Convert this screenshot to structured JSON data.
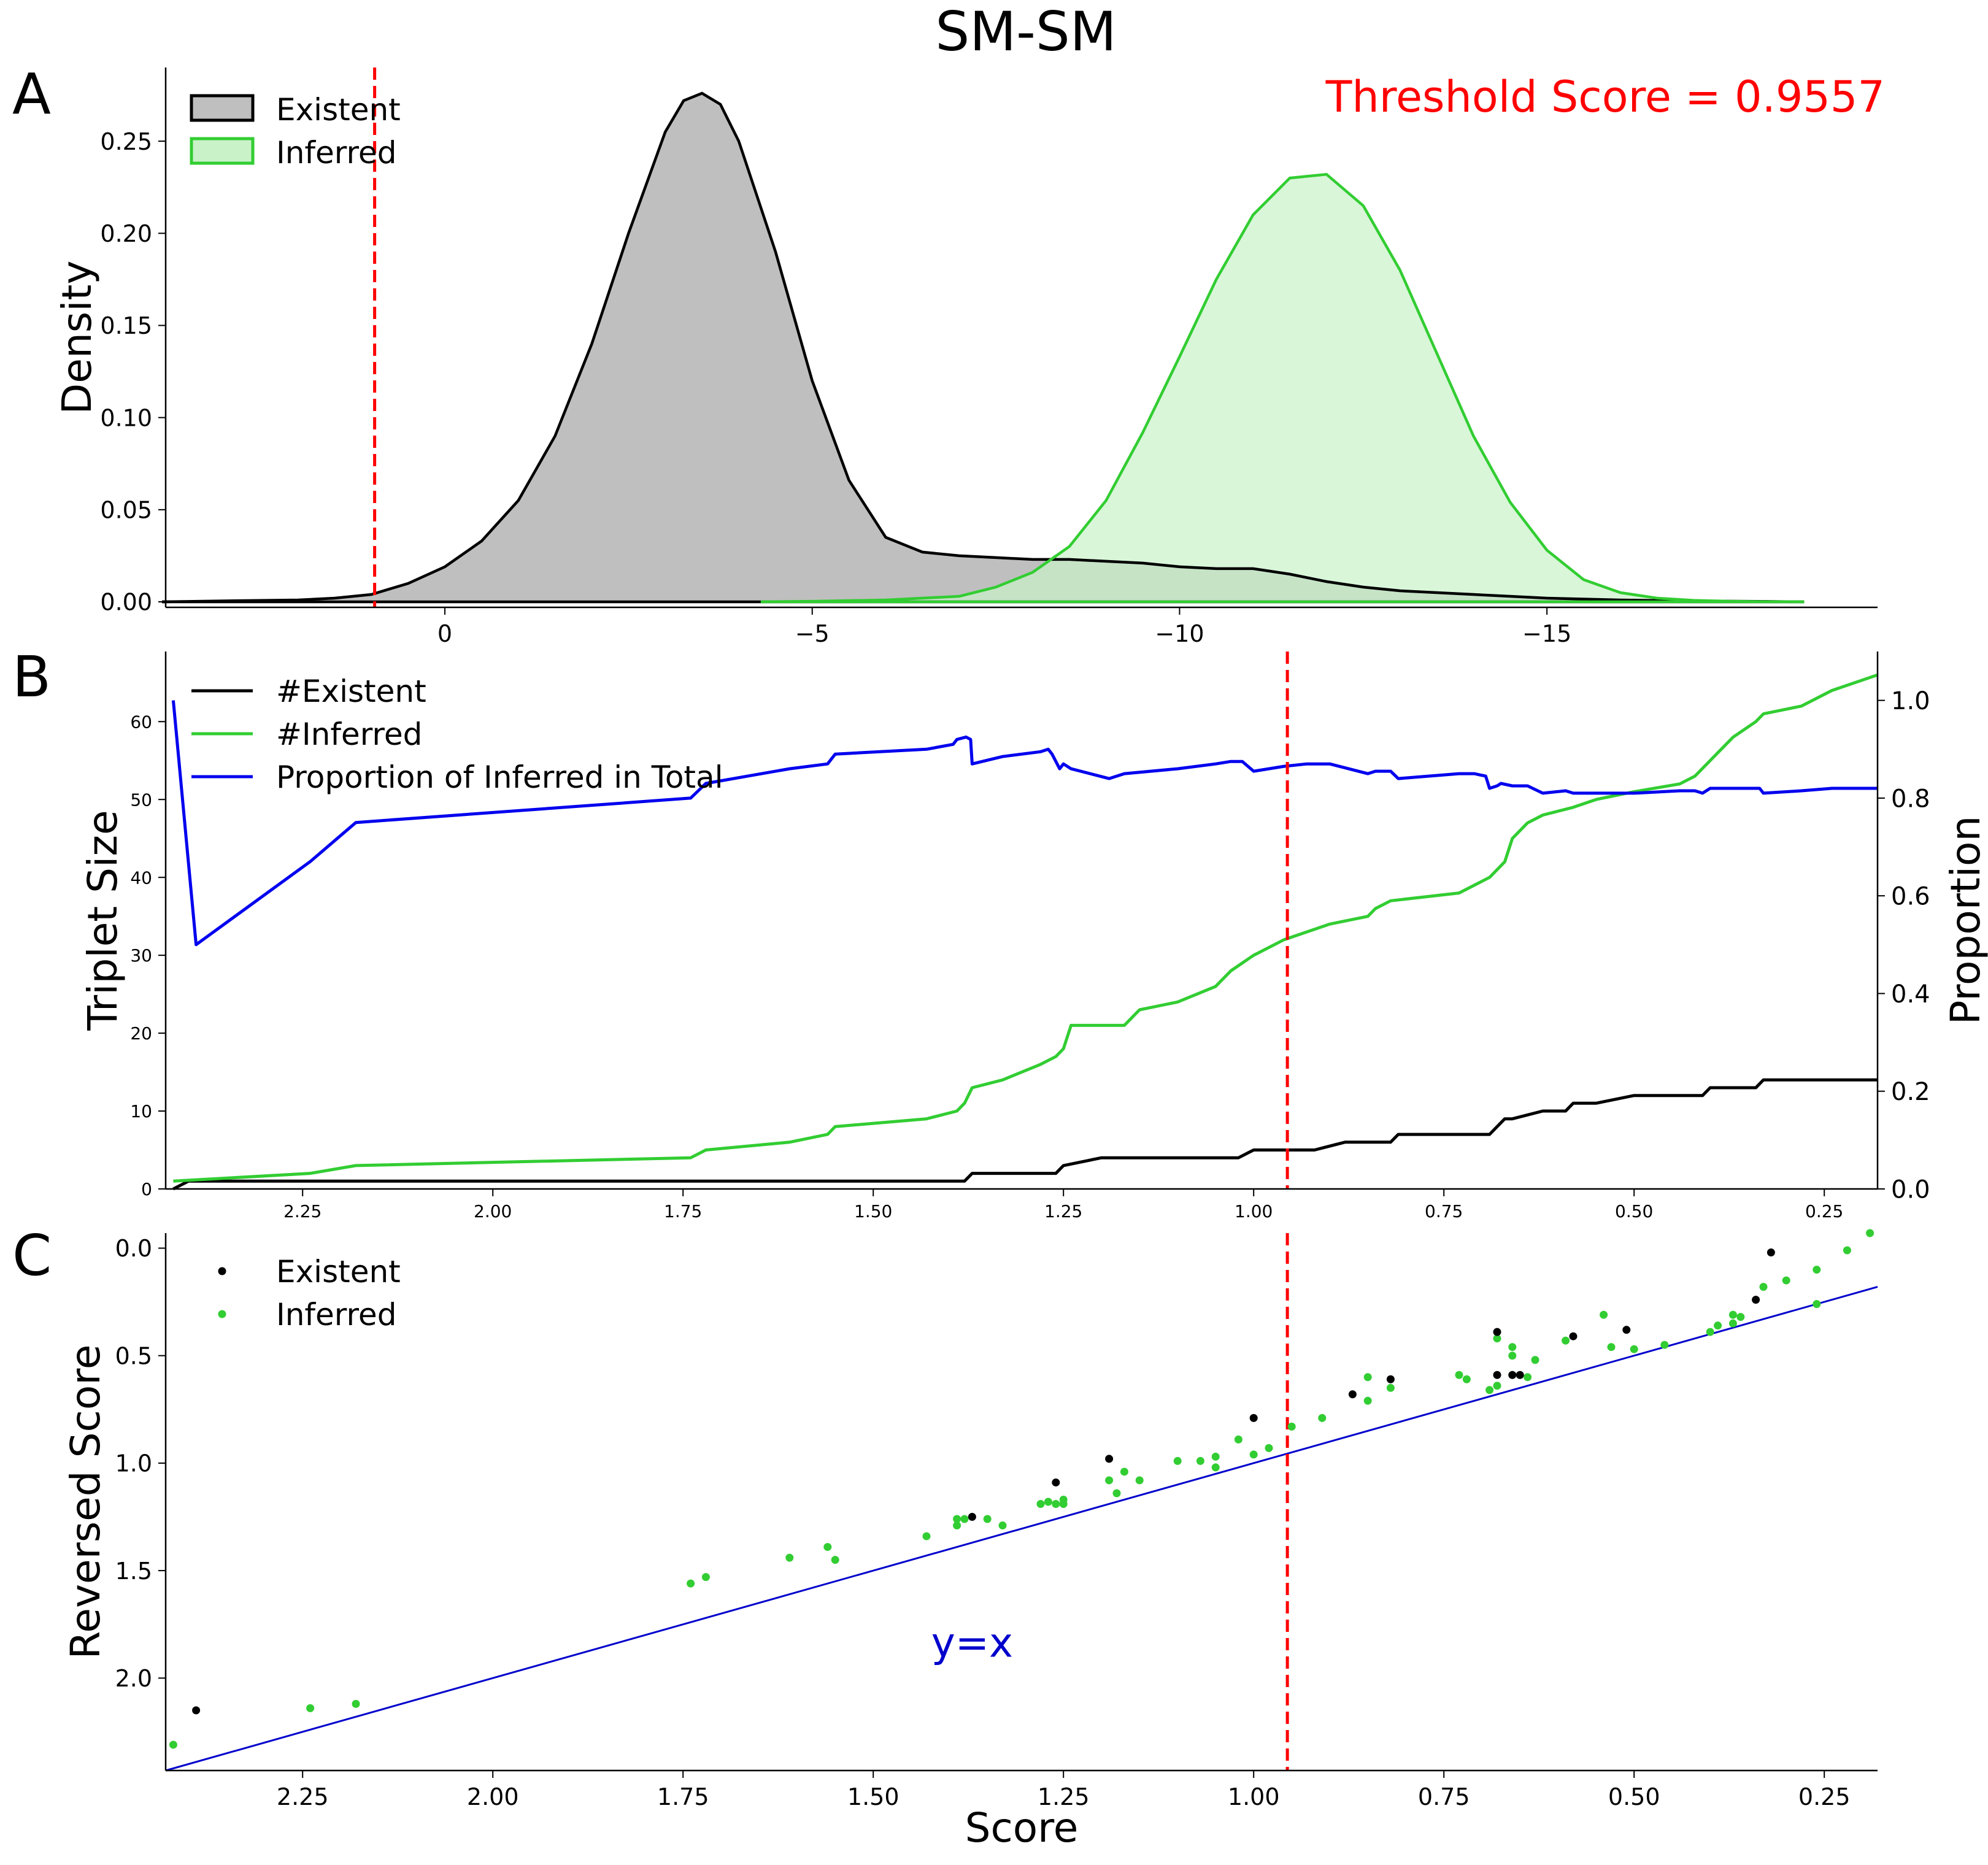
{
  "figure": {
    "title": "SM-SM",
    "colors": {
      "existent": "#000000",
      "existent_fill": "#bfbfbf",
      "inferred": "#32cd32",
      "inferred_fill": "#c9f2c9",
      "proportion": "#0000ee",
      "threshold": "#ff0000",
      "identity_line": "#0000cc"
    }
  },
  "chart_data": [
    {
      "panel_label": "A",
      "type": "area",
      "title": "",
      "annotation": "Threshold Score = 0.9557",
      "xlabel": "",
      "ylabel": "Density",
      "xlim": [
        3.8,
        -19.5
      ],
      "ylim": [
        -0.003,
        0.29
      ],
      "x_ticks": [
        0,
        -5,
        -10,
        -15
      ],
      "x_tick_labels": [
        "0",
        "−5",
        "−10",
        "−15"
      ],
      "y_ticks": [
        0.0,
        0.05,
        0.1,
        0.15,
        0.2,
        0.25
      ],
      "y_tick_labels": [
        "0.00",
        "0.05",
        "0.10",
        "0.15",
        "0.20",
        "0.25"
      ],
      "threshold_x": 0.9557,
      "legend": {
        "placement": "top-left",
        "entries": [
          "Existent",
          "Inferred"
        ]
      },
      "series": [
        {
          "name": "Existent",
          "x": [
            3.85,
            3.0,
            2.0,
            1.5,
            1.0,
            0.5,
            0.0,
            -0.5,
            -1.0,
            -1.5,
            -2.0,
            -2.5,
            -3.0,
            -3.25,
            -3.5,
            -3.75,
            -4.0,
            -4.5,
            -5.0,
            -5.5,
            -6.0,
            -6.5,
            -7.0,
            -7.5,
            -8.0,
            -8.5,
            -9.0,
            -9.5,
            -10.0,
            -10.5,
            -11.0,
            -11.5,
            -12.0,
            -12.5,
            -13.0,
            -13.5,
            -14.0,
            -14.5,
            -15.0,
            -15.5,
            -16.0,
            -17.0,
            -18.0,
            -18.5
          ],
          "y": [
            0.0,
            0.0005,
            0.001,
            0.002,
            0.004,
            0.01,
            0.019,
            0.033,
            0.055,
            0.09,
            0.14,
            0.2,
            0.255,
            0.272,
            0.276,
            0.27,
            0.25,
            0.19,
            0.12,
            0.066,
            0.035,
            0.027,
            0.025,
            0.024,
            0.023,
            0.023,
            0.022,
            0.021,
            0.019,
            0.018,
            0.018,
            0.015,
            0.011,
            0.008,
            0.006,
            0.005,
            0.004,
            0.003,
            0.002,
            0.0015,
            0.001,
            0.0005,
            0.0002,
            0.0
          ]
        },
        {
          "name": "Inferred",
          "x": [
            -4.3,
            -5.0,
            -6.0,
            -7.0,
            -7.5,
            -8.0,
            -8.5,
            -9.0,
            -9.5,
            -10.0,
            -10.5,
            -11.0,
            -11.5,
            -12.0,
            -12.5,
            -13.0,
            -13.5,
            -14.0,
            -14.5,
            -15.0,
            -15.5,
            -16.0,
            -16.5,
            -17.0,
            -17.5,
            -18.0,
            -18.5
          ],
          "y": [
            0.0,
            0.0003,
            0.001,
            0.003,
            0.008,
            0.016,
            0.03,
            0.055,
            0.092,
            0.133,
            0.175,
            0.21,
            0.23,
            0.232,
            0.215,
            0.18,
            0.135,
            0.09,
            0.054,
            0.028,
            0.012,
            0.005,
            0.002,
            0.0008,
            0.0003,
            0.0001,
            0.0
          ]
        }
      ]
    },
    {
      "panel_label": "B",
      "type": "line",
      "title": "",
      "xlabel": "",
      "ylabel": "Triplet Size",
      "y2label": "Proportion",
      "xlim": [
        2.43,
        0.18
      ],
      "ylim": [
        0,
        69
      ],
      "y2lim": [
        0,
        1.1
      ],
      "x_ticks": [
        2.25,
        2.0,
        1.75,
        1.5,
        1.25,
        1.0,
        0.75,
        0.5,
        0.25
      ],
      "x_tick_labels": [
        "2.25",
        "2.00",
        "1.75",
        "1.50",
        "1.25",
        "1.00",
        "0.75",
        "0.50",
        "0.25"
      ],
      "y_ticks": [
        0,
        10,
        20,
        30,
        40,
        50,
        60
      ],
      "y_tick_labels": [
        "0",
        "10",
        "20",
        "30",
        "40",
        "50",
        "60"
      ],
      "y2_ticks": [
        0,
        0.2,
        0.4,
        0.6,
        0.8,
        1.0
      ],
      "y2_tick_labels": [
        "0.0",
        "0.2",
        "0.4",
        "0.6",
        "0.8",
        "1.0"
      ],
      "threshold_x": 0.9557,
      "legend": {
        "placement": "top-left",
        "entries": [
          "#Existent",
          "#Inferred",
          "Proportion of Inferred in Total"
        ]
      },
      "series": [
        {
          "name": "#Existent",
          "axis": "left",
          "x": [
            2.42,
            2.4,
            2.37,
            1.38,
            1.37,
            1.26,
            1.25,
            1.2,
            1.19,
            1.02,
            1.0,
            0.92,
            0.88,
            0.82,
            0.81,
            0.69,
            0.68,
            0.67,
            0.66,
            0.62,
            0.59,
            0.58,
            0.55,
            0.5,
            0.41,
            0.4,
            0.34,
            0.33,
            0.18
          ],
          "y": [
            0,
            1,
            1,
            1,
            2,
            2,
            3,
            4,
            4,
            4,
            5,
            5,
            6,
            6,
            7,
            7,
            8,
            9,
            9,
            10,
            10,
            11,
            11,
            12,
            12,
            13,
            13,
            14,
            14
          ]
        },
        {
          "name": "#Inferred",
          "axis": "left",
          "x": [
            2.42,
            2.24,
            2.18,
            1.74,
            1.72,
            1.61,
            1.56,
            1.55,
            1.43,
            1.39,
            1.38,
            1.37,
            1.33,
            1.28,
            1.26,
            1.25,
            1.24,
            1.17,
            1.15,
            1.1,
            1.05,
            1.03,
            1.0,
            0.96,
            0.9,
            0.85,
            0.84,
            0.82,
            0.73,
            0.71,
            0.69,
            0.68,
            0.67,
            0.66,
            0.64,
            0.62,
            0.58,
            0.55,
            0.5,
            0.44,
            0.42,
            0.4,
            0.37,
            0.34,
            0.33,
            0.28,
            0.24,
            0.18
          ],
          "y": [
            1,
            2,
            3,
            4,
            5,
            6,
            7,
            8,
            9,
            10,
            11,
            13,
            14,
            16,
            17,
            18,
            21,
            21,
            23,
            24,
            26,
            28,
            30,
            32,
            34,
            35,
            36,
            37,
            38,
            39,
            40,
            41,
            42,
            45,
            47,
            48,
            49,
            50,
            51,
            52,
            53,
            55,
            58,
            60,
            61,
            62,
            64,
            66
          ]
        },
        {
          "name": "Proportion of Inferred in Total",
          "axis": "right",
          "x": [
            2.42,
            2.39,
            2.24,
            2.18,
            1.74,
            1.72,
            1.61,
            1.56,
            1.55,
            1.43,
            1.395,
            1.39,
            1.378,
            1.372,
            1.37,
            1.33,
            1.28,
            1.27,
            1.265,
            1.255,
            1.25,
            1.24,
            1.19,
            1.17,
            1.1,
            1.05,
            1.03,
            1.015,
            1.0,
            0.96,
            0.93,
            0.9,
            0.85,
            0.84,
            0.82,
            0.81,
            0.73,
            0.71,
            0.695,
            0.69,
            0.68,
            0.675,
            0.66,
            0.64,
            0.62,
            0.59,
            0.58,
            0.55,
            0.5,
            0.44,
            0.42,
            0.41,
            0.4,
            0.37,
            0.34,
            0.335,
            0.33,
            0.28,
            0.24,
            0.18
          ],
          "y": [
            1.0,
            0.5,
            0.67,
            0.75,
            0.8,
            0.83,
            0.86,
            0.87,
            0.89,
            0.9,
            0.91,
            0.92,
            0.925,
            0.92,
            0.87,
            0.885,
            0.895,
            0.9,
            0.89,
            0.86,
            0.87,
            0.86,
            0.84,
            0.85,
            0.86,
            0.87,
            0.875,
            0.875,
            0.855,
            0.865,
            0.87,
            0.87,
            0.85,
            0.855,
            0.855,
            0.84,
            0.85,
            0.85,
            0.845,
            0.82,
            0.825,
            0.83,
            0.825,
            0.825,
            0.81,
            0.815,
            0.81,
            0.81,
            0.81,
            0.815,
            0.815,
            0.81,
            0.82,
            0.82,
            0.82,
            0.82,
            0.81,
            0.815,
            0.82,
            0.82
          ]
        }
      ]
    },
    {
      "panel_label": "C",
      "type": "scatter",
      "title": "",
      "xlabel": "Score",
      "ylabel": "Reversed Score",
      "xlim": [
        2.43,
        0.18
      ],
      "ylim": [
        2.43,
        -0.07
      ],
      "x_ticks": [
        2.25,
        2.0,
        1.75,
        1.5,
        1.25,
        1.0,
        0.75,
        0.5,
        0.25
      ],
      "x_tick_labels": [
        "2.25",
        "2.00",
        "1.75",
        "1.50",
        "1.25",
        "1.00",
        "0.75",
        "0.50",
        "0.25"
      ],
      "y_ticks": [
        0.0,
        0.5,
        1.0,
        1.5,
        2.0
      ],
      "y_tick_labels": [
        "0.0",
        "0.5",
        "1.0",
        "1.5",
        "2.0"
      ],
      "threshold_x": 0.9557,
      "identity_line": {
        "label": "y=x",
        "label_x": 1.37,
        "label_y": 1.9
      },
      "legend": {
        "placement": "top-left",
        "entries": [
          "Existent",
          "Inferred"
        ]
      },
      "series": [
        {
          "name": "Existent",
          "x": [
            2.39,
            1.37,
            1.26,
            1.19,
            1.0,
            0.87,
            0.82,
            0.68,
            0.68,
            0.66,
            0.65,
            0.58,
            0.51,
            0.34,
            0.32
          ],
          "y": [
            2.15,
            1.25,
            1.09,
            0.98,
            0.79,
            0.68,
            0.61,
            0.39,
            0.59,
            0.59,
            0.59,
            0.41,
            0.38,
            0.24,
            0.02
          ]
        },
        {
          "name": "Inferred",
          "x": [
            2.42,
            2.24,
            2.18,
            1.74,
            1.72,
            1.61,
            1.56,
            1.55,
            1.43,
            1.39,
            1.39,
            1.38,
            1.35,
            1.33,
            1.28,
            1.27,
            1.26,
            1.25,
            1.25,
            1.19,
            1.18,
            1.17,
            1.15,
            1.1,
            1.07,
            1.05,
            1.05,
            1.02,
            1.0,
            0.98,
            0.95,
            0.91,
            0.85,
            0.85,
            0.82,
            0.73,
            0.72,
            0.69,
            0.68,
            0.68,
            0.66,
            0.66,
            0.66,
            0.64,
            0.63,
            0.59,
            0.54,
            0.53,
            0.5,
            0.46,
            0.4,
            0.39,
            0.37,
            0.37,
            0.36,
            0.33,
            0.3,
            0.26,
            0.26,
            0.22,
            0.19
          ],
          "y": [
            2.31,
            2.14,
            2.12,
            1.56,
            1.53,
            1.44,
            1.39,
            1.45,
            1.34,
            1.29,
            1.26,
            1.26,
            1.26,
            1.29,
            1.19,
            1.18,
            1.19,
            1.17,
            1.19,
            1.08,
            1.14,
            1.04,
            1.08,
            0.99,
            0.99,
            1.02,
            0.97,
            0.89,
            0.96,
            0.93,
            0.83,
            0.79,
            0.6,
            0.71,
            0.65,
            0.59,
            0.61,
            0.66,
            0.64,
            0.42,
            0.59,
            0.46,
            0.5,
            0.6,
            0.52,
            0.43,
            0.31,
            0.46,
            0.47,
            0.45,
            0.39,
            0.36,
            0.35,
            0.31,
            0.32,
            0.18,
            0.15,
            0.26,
            0.1,
            0.01,
            -0.07
          ]
        }
      ]
    }
  ]
}
